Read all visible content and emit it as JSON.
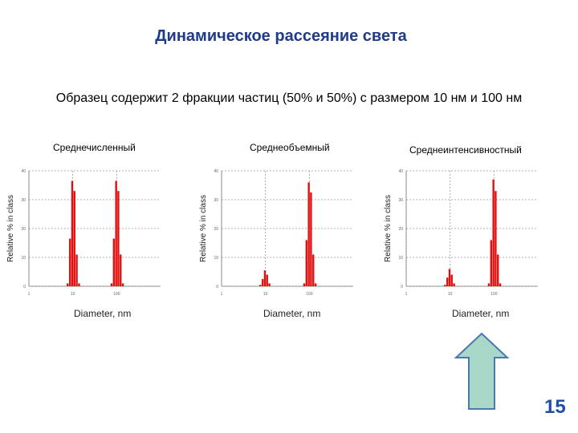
{
  "title": "Динамическое рассеяние света",
  "subtitle": "Образец содержит 2 фракции частиц (50% и 50%) с размером 10 нм и 100 нм",
  "page_number": "15",
  "colors": {
    "bar": "#e01010",
    "title": "#1f3b8a",
    "arrow_fill": "#a8d8c8",
    "arrow_stroke": "#4a78b0"
  },
  "chart_data": [
    {
      "type": "bar",
      "title": "Среднечисленный",
      "xlabel": "Diameter, nm",
      "ylabel": "Relative % in class",
      "x_scale": "log",
      "xlim": [
        1,
        1000
      ],
      "ylim": [
        0,
        40
      ],
      "yticks": [
        "0",
        "10",
        "20",
        "30",
        "40"
      ],
      "xticks": [
        "1",
        "10",
        "100"
      ],
      "grid": true,
      "bins": [
        {
          "x": 7.7,
          "y": 1
        },
        {
          "x": 8.7,
          "y": 16.5
        },
        {
          "x": 9.8,
          "y": 36.5
        },
        {
          "x": 11.0,
          "y": 33
        },
        {
          "x": 12.4,
          "y": 11
        },
        {
          "x": 14.0,
          "y": 1
        },
        {
          "x": 77,
          "y": 1
        },
        {
          "x": 87,
          "y": 16.5
        },
        {
          "x": 98,
          "y": 36.5
        },
        {
          "x": 110,
          "y": 33
        },
        {
          "x": 124,
          "y": 11
        },
        {
          "x": 140,
          "y": 1
        }
      ]
    },
    {
      "type": "bar",
      "title": "Среднеобъемный",
      "xlabel": "Diameter, nm",
      "ylabel": "Relative % in class",
      "x_scale": "log",
      "xlim": [
        1,
        1000
      ],
      "ylim": [
        0,
        40
      ],
      "yticks": [
        "0",
        "10",
        "20",
        "30",
        "40"
      ],
      "xticks": [
        "1",
        "10",
        "100"
      ],
      "grid": true,
      "bins": [
        {
          "x": 7.7,
          "y": 0.5
        },
        {
          "x": 8.7,
          "y": 2.5
        },
        {
          "x": 9.8,
          "y": 5.5
        },
        {
          "x": 11.0,
          "y": 4
        },
        {
          "x": 12.4,
          "y": 1
        },
        {
          "x": 77,
          "y": 1
        },
        {
          "x": 87,
          "y": 16
        },
        {
          "x": 98,
          "y": 36
        },
        {
          "x": 110,
          "y": 32.5
        },
        {
          "x": 124,
          "y": 11
        },
        {
          "x": 140,
          "y": 1
        }
      ]
    },
    {
      "type": "bar",
      "title": "Среднеинтенсивностный",
      "xlabel": "Diameter, nm",
      "ylabel": "Relative % in class",
      "x_scale": "log",
      "xlim": [
        1,
        1000
      ],
      "ylim": [
        0,
        40
      ],
      "yticks": [
        "0",
        "10",
        "20",
        "30",
        "40"
      ],
      "xticks": [
        "1",
        "10",
        "100"
      ],
      "grid": true,
      "bins": [
        {
          "x": 7.7,
          "y": 0.5
        },
        {
          "x": 8.7,
          "y": 3
        },
        {
          "x": 9.8,
          "y": 6
        },
        {
          "x": 11.0,
          "y": 4
        },
        {
          "x": 12.4,
          "y": 1
        },
        {
          "x": 77,
          "y": 1
        },
        {
          "x": 87,
          "y": 16
        },
        {
          "x": 98,
          "y": 37
        },
        {
          "x": 110,
          "y": 33
        },
        {
          "x": 124,
          "y": 11
        },
        {
          "x": 140,
          "y": 1
        }
      ]
    }
  ]
}
